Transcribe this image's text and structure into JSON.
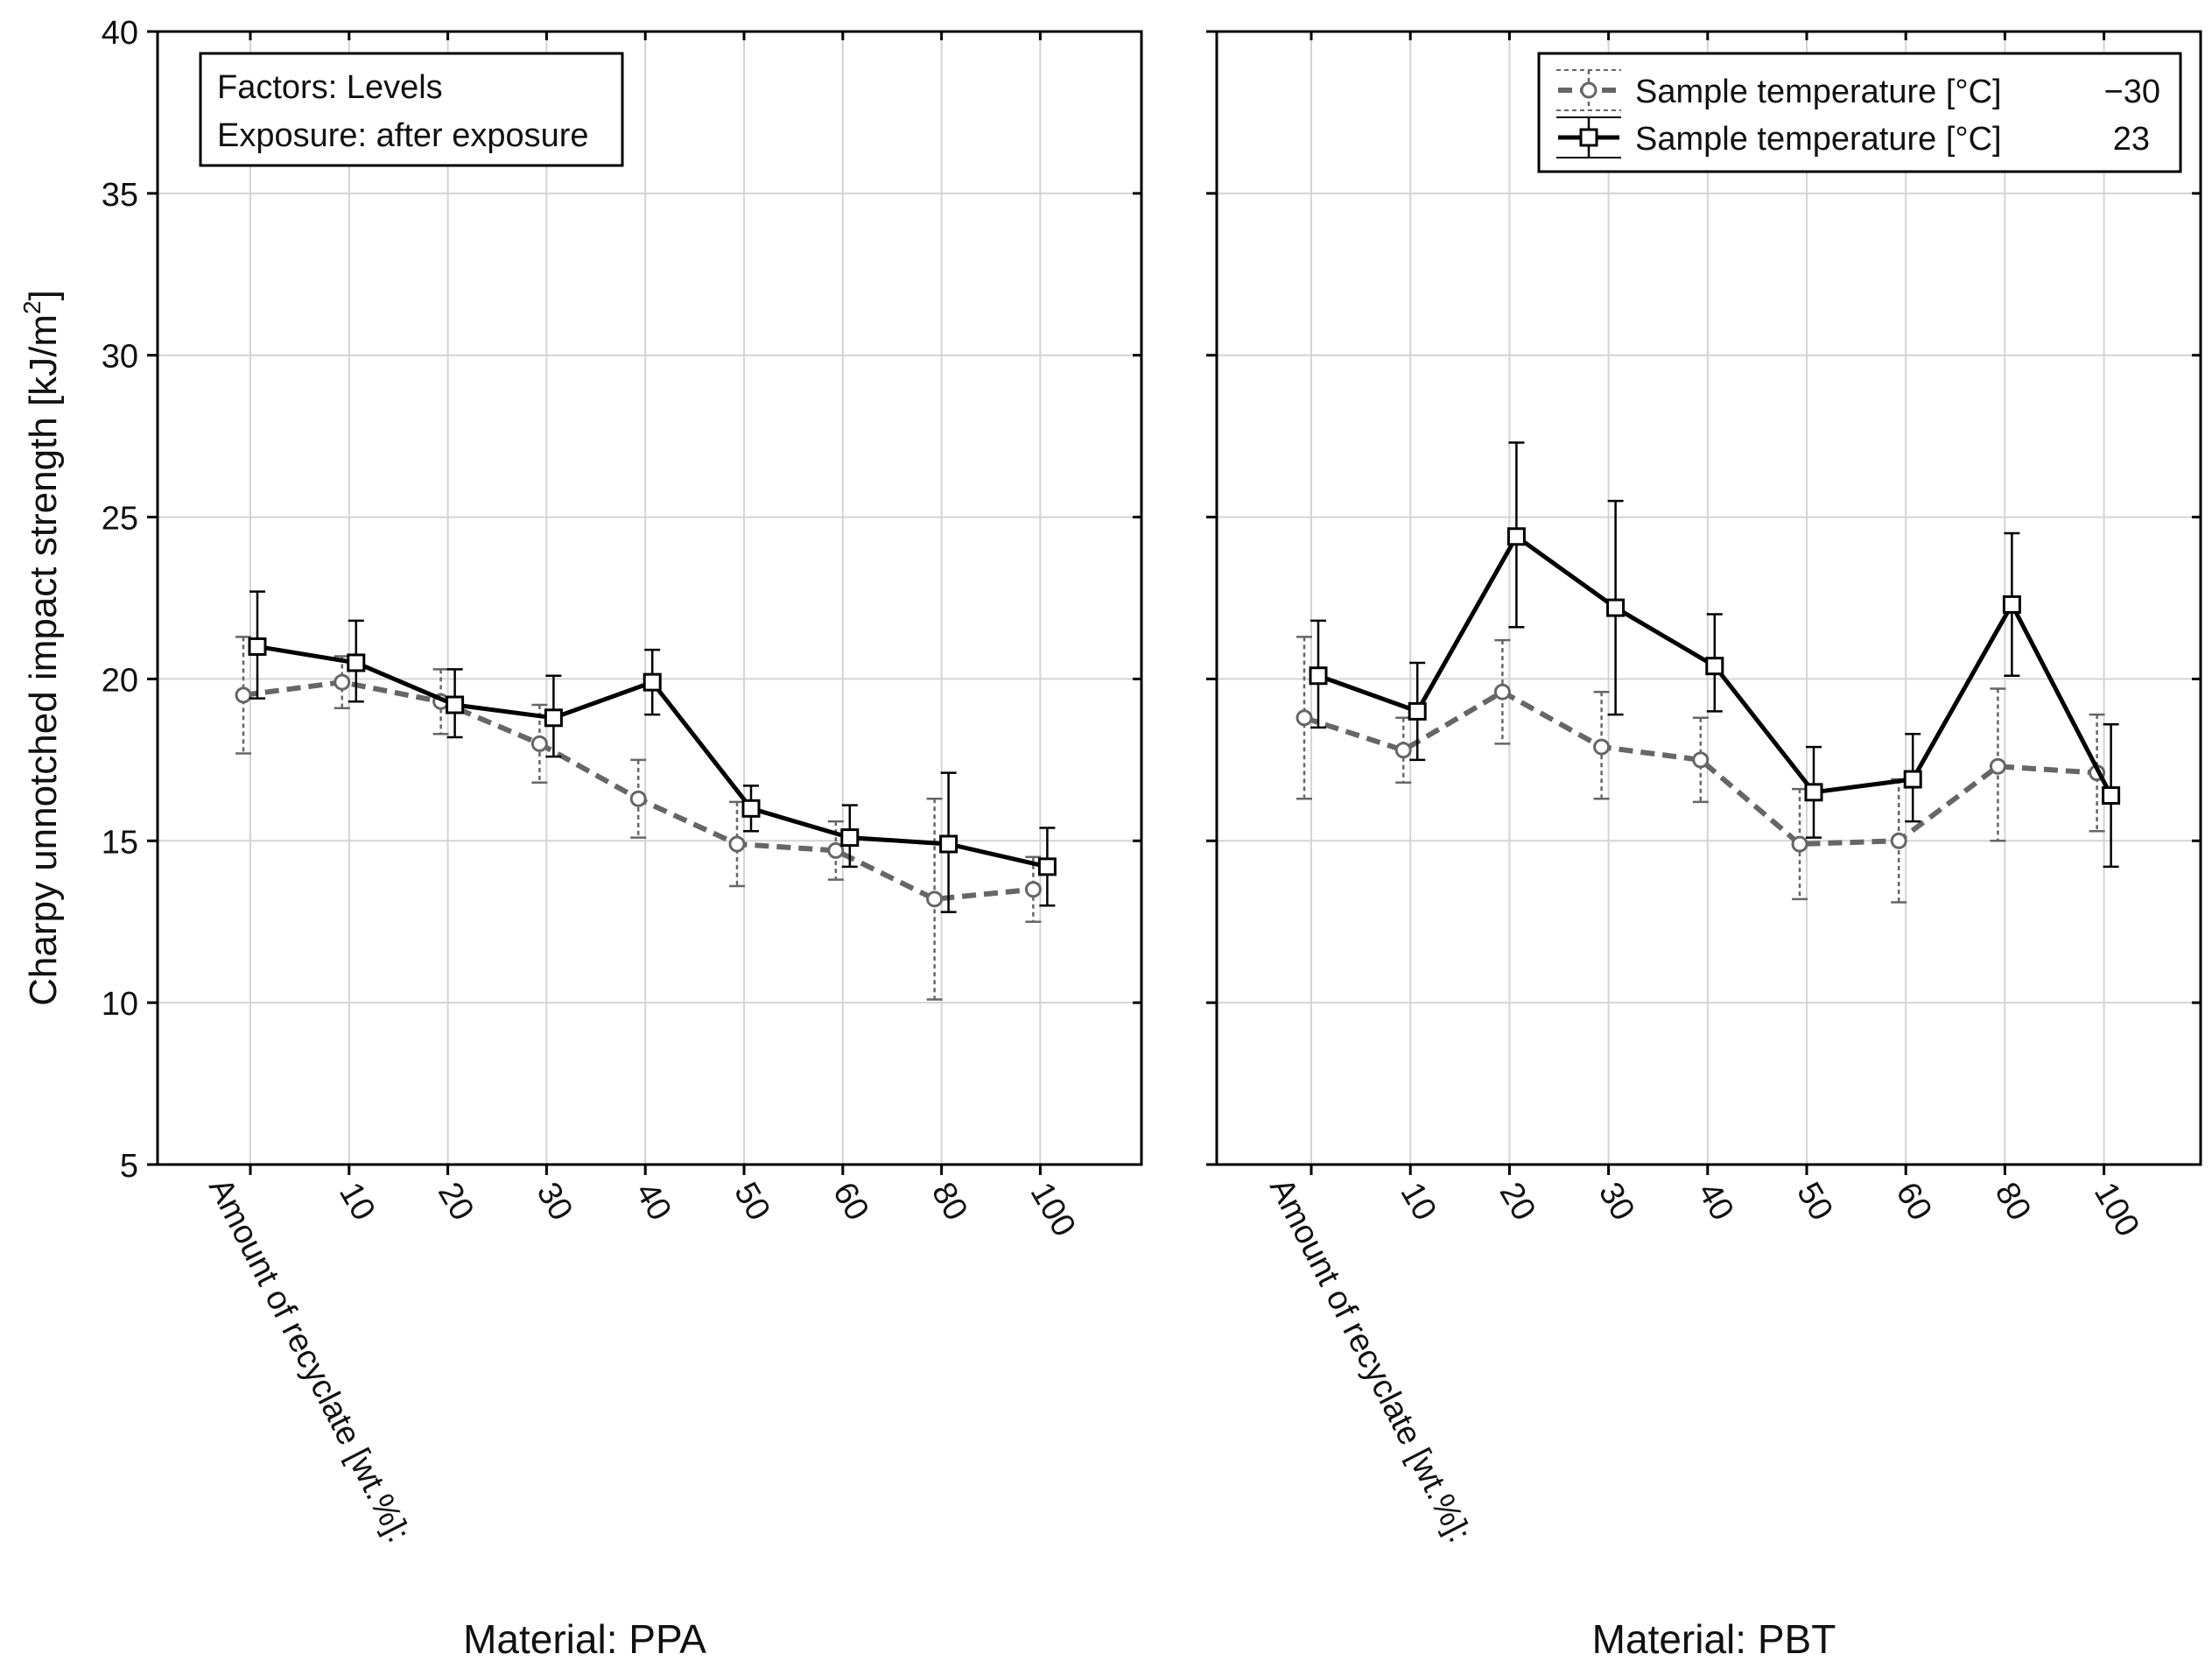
{
  "chart_data": {
    "type": "line",
    "ylabel": "Charpy unnotched impact strength [kJ/m",
    "ylabel_sup": "2",
    "ylabel_close": "]",
    "ylim": [
      5,
      40
    ],
    "yticks": [
      5,
      10,
      15,
      20,
      25,
      30,
      35,
      40
    ],
    "grid": true,
    "factors_box": {
      "line1": "Factors: Levels",
      "line2": "Exposure: after exposure"
    },
    "legend": {
      "placement": "top-right",
      "entries": [
        {
          "name": "Sample temperature [°C]",
          "value": "−30",
          "style": "dashed-circle"
        },
        {
          "name": "Sample temperature [°C]",
          "value": "23",
          "style": "solid-square"
        }
      ]
    },
    "x_axis_title": "Amount of recyclate [wt.%]:",
    "categories": [
      "",
      "10",
      "20",
      "30",
      "40",
      "50",
      "60",
      "80",
      "100"
    ],
    "panels": [
      {
        "material_label": "Material: PPA",
        "series": [
          {
            "name": "-30",
            "color": "#666666",
            "values": [
              19.5,
              19.9,
              19.3,
              18.0,
              16.3,
              14.9,
              14.7,
              13.2,
              13.5
            ],
            "err_low": [
              17.7,
              19.1,
              18.3,
              16.8,
              15.1,
              13.6,
              13.8,
              10.1,
              12.5
            ],
            "err_high": [
              21.3,
              20.7,
              20.3,
              19.2,
              17.5,
              16.2,
              15.6,
              16.3,
              14.5
            ]
          },
          {
            "name": "23",
            "color": "#000000",
            "values": [
              21.0,
              20.5,
              19.2,
              18.8,
              19.9,
              16.0,
              15.1,
              14.9,
              14.2
            ],
            "err_low": [
              19.4,
              19.3,
              18.2,
              17.6,
              18.9,
              15.3,
              14.2,
              12.8,
              13.0
            ],
            "err_high": [
              22.7,
              21.8,
              20.3,
              20.1,
              20.9,
              16.7,
              16.1,
              17.1,
              15.4
            ]
          }
        ]
      },
      {
        "material_label": "Material: PBT",
        "series": [
          {
            "name": "-30",
            "color": "#666666",
            "values": [
              18.8,
              17.8,
              19.6,
              17.9,
              17.5,
              14.9,
              15.0,
              17.3,
              17.1
            ],
            "err_low": [
              16.3,
              16.8,
              18.0,
              16.3,
              16.2,
              13.2,
              13.1,
              15.0,
              15.3
            ],
            "err_high": [
              21.3,
              18.8,
              21.2,
              19.6,
              18.8,
              16.6,
              16.9,
              19.7,
              18.9
            ]
          },
          {
            "name": "23",
            "color": "#000000",
            "values": [
              20.1,
              19.0,
              24.4,
              22.2,
              20.4,
              16.5,
              16.9,
              22.3,
              16.4
            ],
            "err_low": [
              18.5,
              17.5,
              21.6,
              18.9,
              19.0,
              15.1,
              15.6,
              20.1,
              14.2
            ],
            "err_high": [
              21.8,
              20.5,
              27.3,
              25.5,
              22.0,
              17.9,
              18.3,
              24.5,
              18.6
            ]
          }
        ]
      }
    ]
  }
}
